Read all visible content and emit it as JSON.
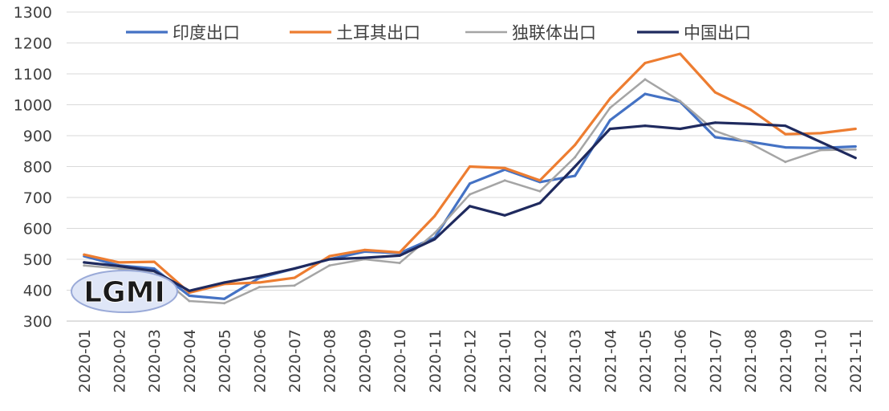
{
  "chart_data": {
    "type": "line",
    "title": "",
    "xlabel": "",
    "ylabel": "",
    "ylim": [
      300,
      1300
    ],
    "yticks": [
      300,
      400,
      500,
      600,
      700,
      800,
      900,
      1000,
      1100,
      1200,
      1300
    ],
    "grid": "horizontal",
    "legend_position": "top",
    "categories": [
      "2020-01",
      "2020-02",
      "2020-03",
      "2020-04",
      "2020-05",
      "2020-06",
      "2020-07",
      "2020-08",
      "2020-09",
      "2020-10",
      "2020-11",
      "2020-12",
      "2021-01",
      "2021-02",
      "2021-03",
      "2021-04",
      "2021-05",
      "2021-06",
      "2021-07",
      "2021-08",
      "2021-09",
      "2021-10",
      "2021-11"
    ],
    "series": [
      {
        "name": "印度出口",
        "color": "#4472C4",
        "values": [
          510,
          480,
          470,
          382,
          372,
          440,
          470,
          500,
          525,
          520,
          570,
          745,
          790,
          750,
          770,
          950,
          1035,
          1010,
          895,
          880,
          862,
          860,
          865
        ]
      },
      {
        "name": "土耳其出口",
        "color": "#ED7D31",
        "values": [
          515,
          490,
          492,
          392,
          420,
          425,
          440,
          510,
          530,
          522,
          640,
          800,
          795,
          755,
          870,
          1020,
          1135,
          1165,
          1040,
          985,
          905,
          908,
          922
        ]
      },
      {
        "name": "独联体出口",
        "color": "#A5A5A5",
        "values": [
          480,
          470,
          460,
          365,
          358,
          410,
          415,
          480,
          500,
          488,
          585,
          710,
          755,
          720,
          830,
          990,
          1082,
          1012,
          915,
          875,
          815,
          853,
          855
        ]
      },
      {
        "name": "中国出口",
        "color": "#1F2A5E",
        "values": [
          490,
          478,
          462,
          398,
          425,
          445,
          470,
          500,
          505,
          512,
          565,
          672,
          642,
          682,
          800,
          922,
          932,
          922,
          942,
          938,
          932,
          880,
          828
        ]
      }
    ]
  },
  "watermark": {
    "text": "LGMI"
  }
}
